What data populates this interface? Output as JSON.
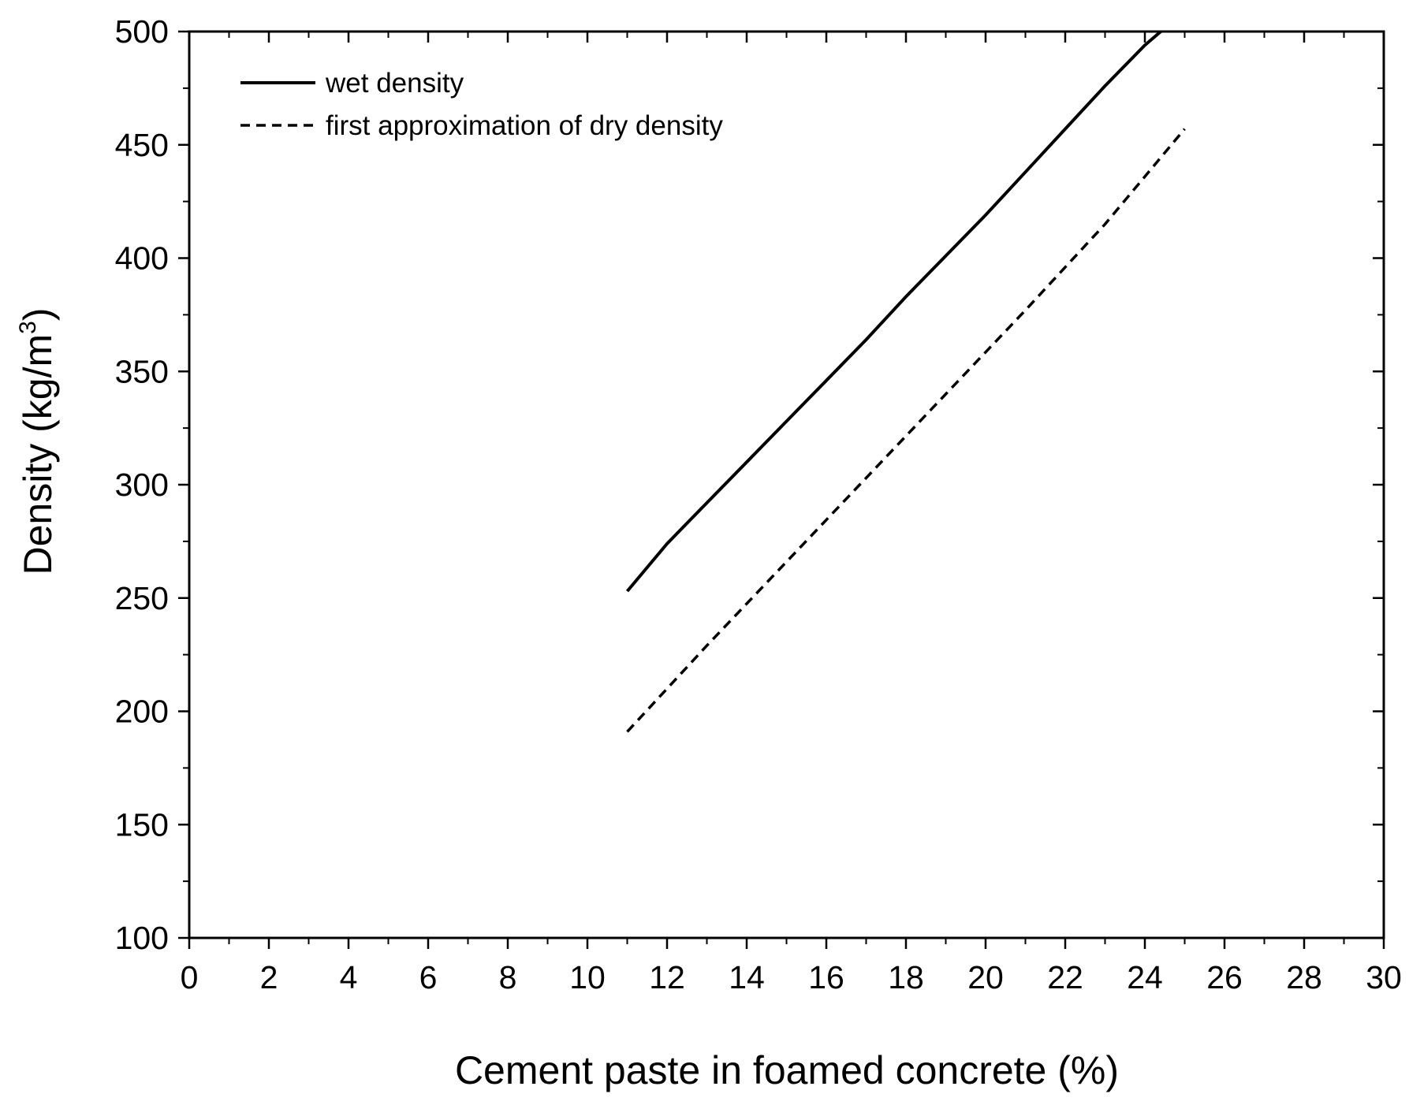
{
  "chart_data": {
    "type": "line",
    "title": "",
    "xlabel": "Cement paste in foamed concrete (%)",
    "ylabel": "Density (kg/m",
    "ylabel_sup": "3",
    "ylabel_close": ")",
    "xlim": [
      0,
      30
    ],
    "ylim": [
      100,
      500
    ],
    "xticks": [
      0,
      2,
      4,
      6,
      8,
      10,
      12,
      14,
      16,
      18,
      20,
      22,
      24,
      26,
      28,
      30
    ],
    "yticks": [
      100,
      150,
      200,
      250,
      300,
      350,
      400,
      450,
      500
    ],
    "grid": false,
    "legend_position": "top-left",
    "series": [
      {
        "name": "wet density",
        "style": "solid",
        "color": "#000000",
        "x": [
          11,
          12,
          13,
          14,
          15,
          16,
          17,
          18,
          19,
          20,
          21,
          22,
          23,
          24,
          24.4
        ],
        "y": [
          253,
          274,
          292,
          310,
          328,
          346,
          364,
          383,
          401,
          419,
          438,
          457,
          476,
          494,
          500
        ]
      },
      {
        "name": "first approximation of dry density",
        "style": "dashed",
        "color": "#000000",
        "x": [
          11,
          13,
          15,
          17,
          19,
          21,
          23,
          25
        ],
        "y": [
          191,
          229,
          266,
          303,
          340,
          377,
          415,
          457
        ]
      }
    ]
  }
}
